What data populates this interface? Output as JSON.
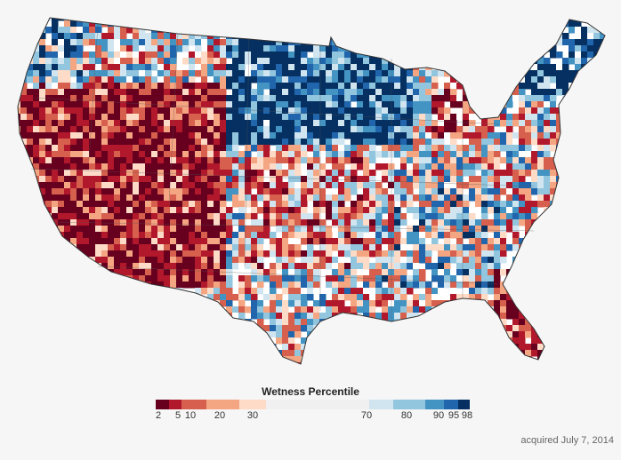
{
  "legend": {
    "title": "Wetness Percentile",
    "ticks": [
      "2",
      "5",
      "10",
      "20",
      "30",
      "70",
      "80",
      "90",
      "95",
      "98"
    ],
    "scale_colors": [
      "#67001f",
      "#b2182b",
      "#d6604d",
      "#f4a582",
      "#fddbc7",
      "#f0f0f0",
      "#d1e5f0",
      "#92c5de",
      "#4393c3",
      "#2166ac",
      "#053061"
    ]
  },
  "caption": "acquired July 7, 2014"
}
